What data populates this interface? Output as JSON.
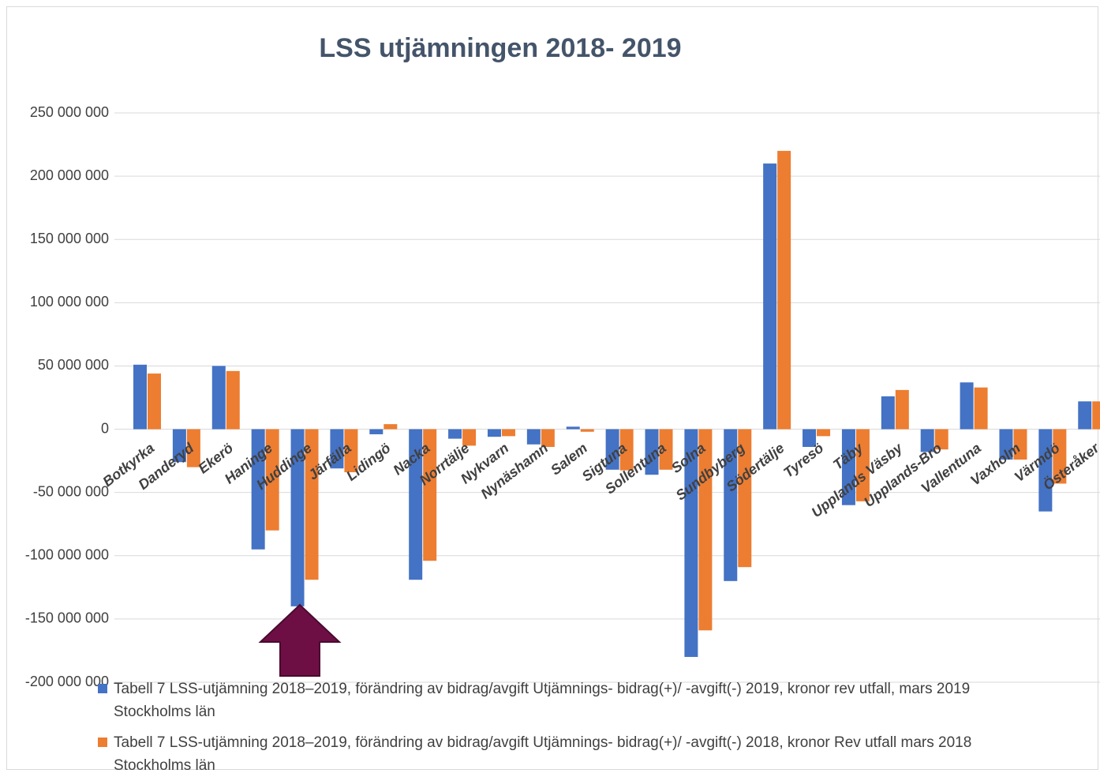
{
  "chart_data": {
    "type": "bar",
    "title": "LSS utjämningen 2018- 2019",
    "categories": [
      "Botkyrka",
      "Danderyd",
      "Ekerö",
      "Haninge",
      "Huddinge",
      "Järfälla",
      "Lidingö",
      "Nacka",
      "Norrtälje",
      "Nykvarn",
      "Nynäshamn",
      "Salem",
      "Sigtuna",
      "Sollentuna",
      "Solna",
      "Sundbyberg",
      "Södertälje",
      "Tyresö",
      "Täby",
      "Upplands Väsby",
      "Upplands-Bro",
      "Vallentuna",
      "Vaxholm",
      "Värmdö",
      "Österåker"
    ],
    "series": [
      {
        "name": "Tabell 7  LSS-utjämning 2018–2019, förändring av bidrag/avgift Utjämnings- bidrag(+)/ -avgift(-) 2019, kronor rev utfall, mars 2019 Stockholms län",
        "color": "#4472c4",
        "values": [
          51000000,
          -26000000,
          50000000,
          -95000000,
          -140000000,
          -31000000,
          -4000000,
          -119000000,
          -7500000,
          -6000000,
          -12000000,
          2000000,
          -32000000,
          -36000000,
          -180000000,
          -120000000,
          210000000,
          -14000000,
          -60000000,
          26000000,
          -18000000,
          37000000,
          -24000000,
          -65000000,
          22000000
        ]
      },
      {
        "name": "Tabell 7  LSS-utjämning 2018–2019, förändring av bidrag/avgift Utjämnings- bidrag(+)/ -avgift(-) 2018, kronor Rev utfall mars 2018 Stockholms län",
        "color": "#ed7d31",
        "values": [
          44000000,
          -30000000,
          46000000,
          -80000000,
          -119000000,
          -34000000,
          4000000,
          -104000000,
          -13000000,
          -5500000,
          -14000000,
          -2000000,
          -32500000,
          -32000000,
          -159000000,
          -109000000,
          220000000,
          -5500000,
          -57000000,
          31000000,
          -16000000,
          33000000,
          -24000000,
          -43000000,
          22000000
        ]
      }
    ],
    "ylim": [
      -200000000,
      250000000
    ],
    "yticks": [
      {
        "value": -200000000,
        "label": "-200 000 000"
      },
      {
        "value": -150000000,
        "label": "-150 000 000"
      },
      {
        "value": -100000000,
        "label": "-100 000 000"
      },
      {
        "value": -50000000,
        "label": "-50 000 000"
      },
      0,
      {
        "value": 50000000,
        "label": "50 000 000"
      },
      {
        "value": 100000000,
        "label": "100 000 000"
      },
      {
        "value": 150000000,
        "label": "150 000 000"
      },
      {
        "value": 200000000,
        "label": "200 000 000"
      },
      {
        "value": 250000000,
        "label": "250 000 000"
      }
    ],
    "grid": true
  }
}
